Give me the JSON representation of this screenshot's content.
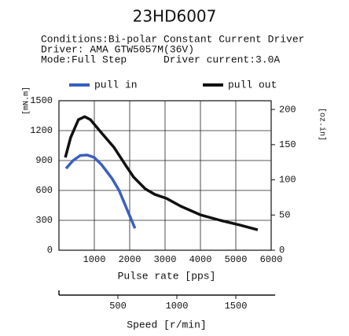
{
  "chart_data": {
    "type": "line",
    "title": "23HD6007",
    "conditions": [
      "Conditions:Bi-polar Constant Current Driver",
      "Driver: AMA GTW5057M(36V)",
      "Mode:Full Step",
      "Driver current:3.0A"
    ],
    "xlabel": "Pulse rate [pps]",
    "ylabel": "[mN.m]",
    "y2label": "[oz.in]",
    "xlim": [
      0,
      6000
    ],
    "xticks": [
      1000,
      2000,
      3000,
      4000,
      5000,
      6000
    ],
    "ylim": [
      0,
      1500
    ],
    "yticks": [
      0,
      300,
      600,
      900,
      1200,
      1500
    ],
    "y2lim": [
      0,
      212.4
    ],
    "y2ticks": [
      0,
      50,
      100,
      150,
      200
    ],
    "grid": true,
    "speed_axis": {
      "label": "Speed [r/min]",
      "lim": [
        0,
        1800
      ],
      "ticks": [
        500,
        1000,
        1500
      ]
    },
    "series": [
      {
        "name": "pull in",
        "color": "#3b5fc0",
        "x": [
          200,
          400,
          600,
          800,
          1000,
          1200,
          1500,
          1700,
          1900,
          2150
        ],
        "values": [
          820,
          900,
          950,
          955,
          930,
          860,
          720,
          600,
          430,
          220
        ]
      },
      {
        "name": "pull out",
        "color": "#111111",
        "x": [
          180,
          330,
          550,
          730,
          890,
          1220,
          1560,
          1890,
          2110,
          2440,
          2710,
          3040,
          3440,
          4000,
          4560,
          5110,
          5620
        ],
        "values": [
          930,
          1130,
          1310,
          1340,
          1310,
          1170,
          1030,
          850,
          734,
          616,
          560,
          520,
          442,
          355,
          300,
          253,
          205
        ]
      }
    ]
  }
}
